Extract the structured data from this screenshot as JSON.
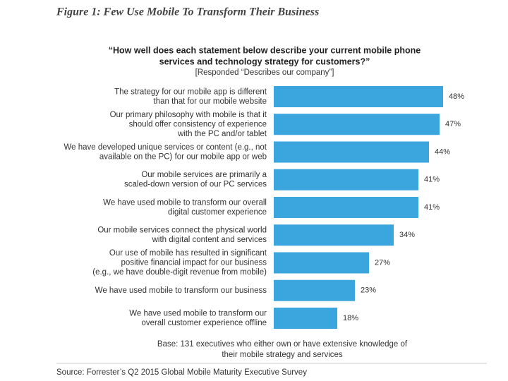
{
  "chart_data": {
    "type": "bar",
    "figure_title": "Figure 1: Few Use Mobile To Transform Their Business",
    "title": [
      "“How well does each statement below describe your current mobile phone",
      "services and technology strategy for customers?”"
    ],
    "subtitle": "[Responded “Describes our company”]",
    "categories": [
      [
        "The strategy for our mobile app is different",
        "than that for our mobile website"
      ],
      [
        "Our primary philosophy with mobile is that it",
        "should offer consistency of experience",
        "with the PC and/or tablet"
      ],
      [
        "We have developed unique services or content (e.g., not",
        "available on the PC) for our mobile app or web"
      ],
      [
        "Our mobile services are primarily a",
        "scaled-down version of our PC services"
      ],
      [
        "We have used mobile to transform our overall",
        "digital customer experience"
      ],
      [
        "Our mobile services connect the physical world",
        "with digital content and services"
      ],
      [
        "Our use of mobile has resulted in significant",
        "positive financial impact for our business",
        "(e.g., we have double-digit revenue from mobile)"
      ],
      [
        "We have used mobile to transform our business"
      ],
      [
        "We have used mobile to transform our",
        "overall customer experience offline"
      ]
    ],
    "values": [
      48,
      47,
      44,
      41,
      41,
      34,
      27,
      23,
      18
    ],
    "value_labels": [
      "48%",
      "47%",
      "44%",
      "41%",
      "41%",
      "34%",
      "27%",
      "23%",
      "18%"
    ],
    "color": "#3ba6de",
    "note": [
      "Base: 131 executives who either own or have extensive knowledge of",
      "their mobile strategy and services"
    ],
    "source": "Source: Forrester’s Q2 2015 Global Mobile Maturity Executive Survey"
  }
}
